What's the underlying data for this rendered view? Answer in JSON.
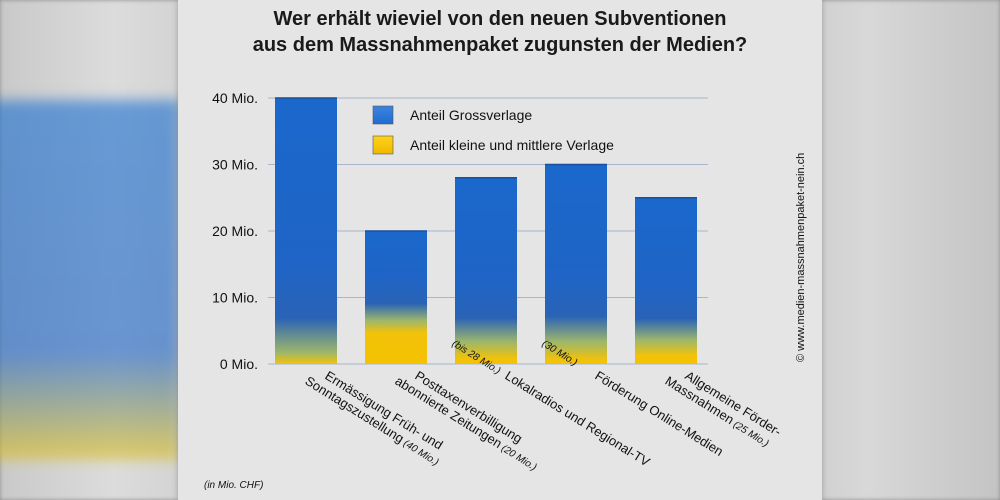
{
  "chart_data": {
    "type": "bar",
    "title": "Wer erhält wieviel von den neuen Subventionen aus dem Massnahmenpaket zugunsten der Medien?",
    "title_lines": [
      "Wer erhält wieviel von den neuen Subventionen",
      "aus dem Massnahmenpaket zugunsten der Medien?"
    ],
    "y_ticks": [
      {
        "value": 0,
        "label": "0 Mio."
      },
      {
        "value": 10,
        "label": "10 Mio."
      },
      {
        "value": 20,
        "label": "20 Mio."
      },
      {
        "value": 30,
        "label": "30 Mio."
      },
      {
        "value": 40,
        "label": "40 Mio."
      }
    ],
    "ylim": [
      0,
      40
    ],
    "grid": true,
    "legend_position": "top-right",
    "unit_note": "(in Mio. CHF)",
    "copyright": "© www.medien-massnahmenpaket-nein.ch",
    "series": [
      {
        "name": "Anteil Grossverlage",
        "color": "#1f6bd0",
        "values": [
          36.3,
          12.5,
          23.3,
          25.2,
          20.2
        ]
      },
      {
        "name": "Anteil kleine und mittlere Verlage",
        "color": "#f5c200",
        "values": [
          3.7,
          7.5,
          4.7,
          4.8,
          4.8
        ]
      }
    ],
    "categories": [
      {
        "lines": [
          "Ermässigung Früh- und",
          "Sonntagszustellung"
        ],
        "sub": "(40 Mio.)",
        "total": 40
      },
      {
        "lines": [
          "Posttaxenverbilligung",
          "abonnierte Zeitungen"
        ],
        "sub": "(20 Mio.)",
        "total": 20
      },
      {
        "lines": [
          "Lokalradios und Regional-TV"
        ],
        "sub": "(bis 28 Mio.)",
        "total": 28
      },
      {
        "lines": [
          "Förderung Online-Medien"
        ],
        "sub": "(30 Mio.)",
        "total": 30
      },
      {
        "lines": [
          "Allgemeine Förder-",
          "Massnahmen"
        ],
        "sub": "(25 Mio.)",
        "total": 25
      }
    ]
  }
}
